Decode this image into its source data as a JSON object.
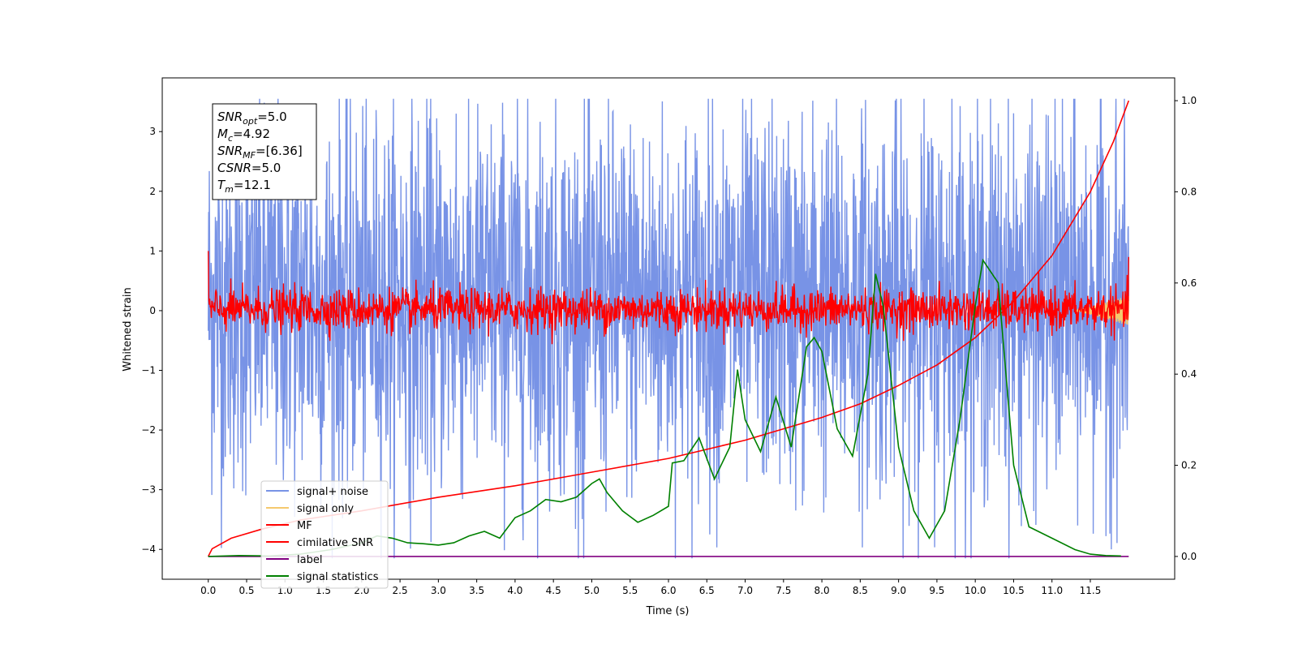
{
  "chart_data": {
    "type": "line",
    "xlabel": "Time (s)",
    "ylabel": "Whitened strain",
    "xlim": [
      -0.6,
      12.6
    ],
    "ylim": [
      -4.5,
      3.9
    ],
    "y2lim": [
      -0.05,
      1.05
    ],
    "grid": false,
    "x_ticks": [
      "0.0",
      "0.5",
      "1.0",
      "1.5",
      "2.0",
      "2.5",
      "3.0",
      "3.5",
      "4.0",
      "4.5",
      "5.0",
      "5.5",
      "6.0",
      "6.5",
      "7.0",
      "7.5",
      "8.0",
      "8.5",
      "9.0",
      "9.5",
      "10.0",
      "10.5",
      "11.0",
      "11.5"
    ],
    "y_ticks": [
      "−4",
      "−3",
      "−2",
      "−1",
      "0",
      "1",
      "2",
      "3"
    ],
    "y2_ticks": [
      "0.0",
      "0.2",
      "0.4",
      "0.6",
      "0.8",
      "1.0"
    ],
    "annotation": [
      {
        "sym": "SNR",
        "sub": "opt",
        "value": "=5.0"
      },
      {
        "sym": "M",
        "sub": "c",
        "value": "=4.92"
      },
      {
        "sym": "SNR",
        "sub": "MF",
        "value": "=[6.36]"
      },
      {
        "sym": "CSNR",
        "sub": "",
        "value": "=5.0"
      },
      {
        "sym": "T",
        "sub": "m",
        "value": "=12.1"
      }
    ],
    "legend": {
      "placement": "lower-left",
      "entries": [
        {
          "label": "signal+ noise",
          "color": "#7893e6"
        },
        {
          "label": "signal only",
          "color": "#f5c96e"
        },
        {
          "label": "MF",
          "color": "#ff0000"
        },
        {
          "label": "cimilative SNR",
          "color": "#ff0000"
        },
        {
          "label": "label",
          "color": "#800080"
        },
        {
          "label": "signal statistics",
          "color": "#008000"
        }
      ]
    },
    "series": [
      {
        "name": "signal+ noise",
        "axis": "left",
        "color": "#7893e6",
        "kind": "noise",
        "x_range": [
          0,
          12.0
        ],
        "typical_range": [
          -1.7,
          2.0
        ],
        "max": 3.55,
        "min": -4.15
      },
      {
        "name": "signal only",
        "axis": "left",
        "color": "#f5c96e",
        "kind": "chirp",
        "x_range": [
          11.3,
          12.0
        ],
        "amplitude": 0.25
      },
      {
        "name": "MF",
        "axis": "left",
        "color": "#ff0000",
        "kind": "noise",
        "x_range": [
          0,
          12.0
        ],
        "typical_range": [
          -0.2,
          0.3
        ],
        "start": 1.0,
        "end": 0.9
      },
      {
        "name": "cimilative SNR",
        "axis": "right",
        "color": "#ff0000",
        "x": [
          0,
          0.05,
          0.3,
          0.7,
          1.2,
          2.0,
          3.0,
          4.0,
          5.0,
          6.0,
          7.0,
          8.0,
          8.5,
          9.0,
          9.5,
          10.0,
          10.5,
          11.0,
          11.5,
          11.8,
          12.0
        ],
        "y": [
          0,
          0.017,
          0.04,
          0.06,
          0.08,
          0.1,
          0.13,
          0.155,
          0.185,
          0.215,
          0.255,
          0.305,
          0.335,
          0.375,
          0.42,
          0.48,
          0.56,
          0.66,
          0.8,
          0.91,
          1.0
        ]
      },
      {
        "name": "label",
        "axis": "right",
        "color": "#800080",
        "x": [
          0,
          12.0
        ],
        "y": [
          0,
          0
        ]
      },
      {
        "name": "signal statistics",
        "axis": "right",
        "color": "#008000",
        "x": [
          0,
          0.4,
          0.8,
          1.2,
          1.6,
          2.0,
          2.2,
          2.4,
          2.6,
          2.8,
          3.0,
          3.2,
          3.4,
          3.6,
          3.8,
          4.0,
          4.2,
          4.4,
          4.6,
          4.8,
          5.0,
          5.1,
          5.2,
          5.4,
          5.6,
          5.8,
          6.0,
          6.05,
          6.2,
          6.4,
          6.6,
          6.8,
          6.9,
          7.0,
          7.2,
          7.4,
          7.6,
          7.8,
          7.9,
          8.0,
          8.2,
          8.4,
          8.6,
          8.7,
          8.8,
          9.0,
          9.2,
          9.4,
          9.6,
          9.8,
          10.0,
          10.1,
          10.3,
          10.5,
          10.7,
          11.0,
          11.3,
          11.5,
          11.7,
          11.9
        ],
        "y": [
          0,
          0.002,
          0.001,
          0.005,
          0.015,
          0.03,
          0.045,
          0.04,
          0.03,
          0.028,
          0.025,
          0.03,
          0.045,
          0.055,
          0.04,
          0.085,
          0.1,
          0.125,
          0.12,
          0.13,
          0.16,
          0.17,
          0.14,
          0.1,
          0.075,
          0.09,
          0.11,
          0.205,
          0.21,
          0.26,
          0.17,
          0.24,
          0.41,
          0.3,
          0.23,
          0.35,
          0.24,
          0.46,
          0.48,
          0.45,
          0.28,
          0.22,
          0.4,
          0.62,
          0.55,
          0.24,
          0.1,
          0.04,
          0.1,
          0.3,
          0.55,
          0.65,
          0.6,
          0.2,
          0.065,
          0.04,
          0.015,
          0.005,
          0.002,
          0.001
        ]
      }
    ]
  }
}
